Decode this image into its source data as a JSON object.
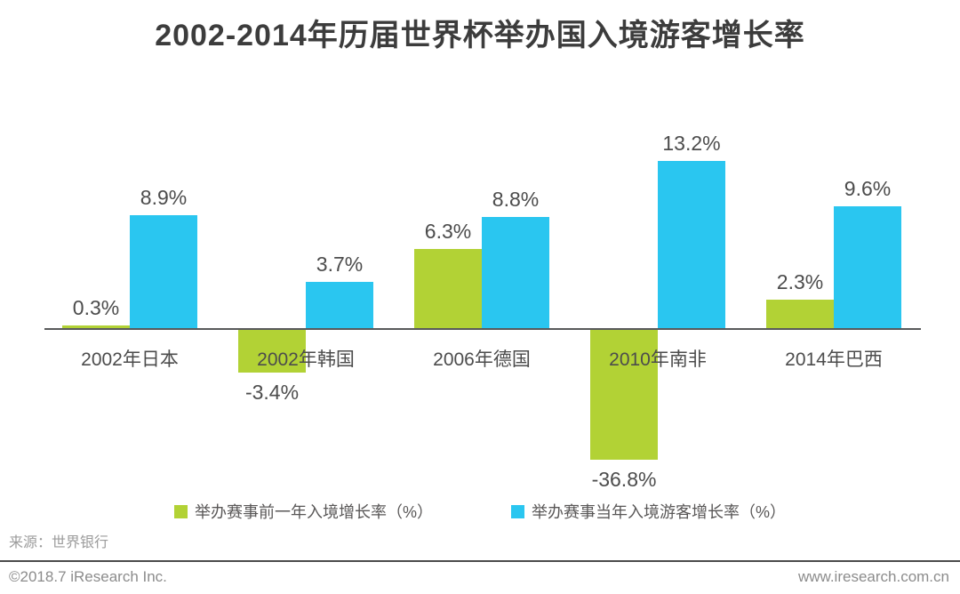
{
  "page": {
    "title": "2002-2014年历届世界杯举办国入境游客增长率",
    "source_note": "来源：世界银行",
    "footer": {
      "copyright": "©2018.7 iResearch Inc.",
      "website": "www.iresearch.com.cn"
    }
  },
  "colors": {
    "prev_year_green": "#b2d235",
    "event_year_blue": "#2ac6f0",
    "axis": "#58595b",
    "title_text": "#3c3c3c",
    "label_text": "#4c4c4c",
    "muted_text": "#8c8c8c"
  },
  "chart_data": {
    "type": "bar",
    "title": "2002-2014年历届世界杯举办国入境游客增长率",
    "categories": [
      "2002年日本",
      "2002年韩国",
      "2006年德国",
      "2010年南非",
      "2014年巴西"
    ],
    "series": [
      {
        "name": "举办赛事前一年入境增长率（%）",
        "color": "#b2d235",
        "values": [
          0.3,
          -3.4,
          6.3,
          -36.8,
          2.3
        ]
      },
      {
        "name": "举办赛事当年入境游客增长率（%）",
        "color": "#2ac6f0",
        "values": [
          8.9,
          3.7,
          8.8,
          13.2,
          9.6
        ]
      }
    ],
    "value_labels": [
      [
        "0.3%",
        "-3.4%",
        "6.3%",
        "-36.8%",
        "2.3%"
      ],
      [
        "8.9%",
        "3.7%",
        "8.8%",
        "13.2%",
        "9.6%"
      ]
    ],
    "value_label_format": "{v}%",
    "xlabel": "",
    "ylabel": "",
    "baseline": 0,
    "grid": false,
    "axis_ticks_shown": false,
    "legend_position": "bottom"
  }
}
